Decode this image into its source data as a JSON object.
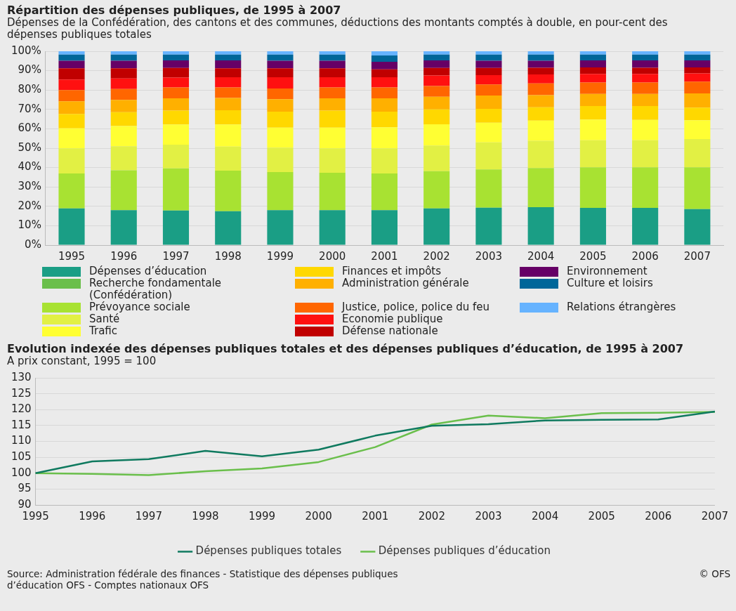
{
  "chart_data": [
    {
      "type": "bar",
      "title": "Répartition des dépenses publiques, de 1995 à 2007",
      "subtitle": "Dépenses de la Confédération, des cantons et des communes, déductions des montants comptés à double, en pour-cent des dépenses publiques totales",
      "categories": [
        "1995",
        "1996",
        "1997",
        "1998",
        "1999",
        "2000",
        "2001",
        "2002",
        "2003",
        "2004",
        "2005",
        "2006",
        "2007"
      ],
      "stacked": true,
      "ylim": [
        0,
        100
      ],
      "yticks": [
        {
          "value": 0,
          "label": "0%"
        },
        {
          "value": 10,
          "label": "10%"
        },
        {
          "value": 20,
          "label": "20%"
        },
        {
          "value": 30,
          "label": "30%"
        },
        {
          "value": 40,
          "label": "40%"
        },
        {
          "value": 50,
          "label": "50%"
        },
        {
          "value": 60,
          "label": "60%"
        },
        {
          "value": 70,
          "label": "70%"
        },
        {
          "value": 80,
          "label": "80%"
        },
        {
          "value": 90,
          "label": "90%"
        },
        {
          "value": 100,
          "label": "100%"
        }
      ],
      "grid": "y",
      "legend": "bottom",
      "series": [
        {
          "name": "Dépenses d’éducation",
          "color": "#1a9e85",
          "values": [
            18.9,
            18.0,
            17.8,
            17.5,
            18.0,
            18.0,
            18.0,
            18.9,
            19.3,
            19.6,
            19.2,
            19.2,
            18.6
          ]
        },
        {
          "name": "Recherche fondamentale (Confédération)",
          "color": "#6abf4b",
          "values": [
            null,
            null,
            null,
            null,
            null,
            null,
            null,
            null,
            null,
            null,
            null,
            null,
            null
          ]
        },
        {
          "name": "Prévoyance sociale",
          "color": "#a8e232",
          "values": [
            18.1,
            20.6,
            21.8,
            20.9,
            19.7,
            19.3,
            19.0,
            19.2,
            19.7,
            20.2,
            20.9,
            20.9,
            21.5
          ]
        },
        {
          "name": "Santé",
          "color": "#e2f044",
          "values": [
            12.9,
            12.4,
            12.2,
            12.4,
            12.6,
            12.6,
            12.9,
            13.3,
            14.0,
            14.0,
            14.0,
            14.0,
            14.6
          ]
        },
        {
          "name": "Trafic",
          "color": "#ffff33",
          "values": [
            10.3,
            10.4,
            10.4,
            11.4,
            10.3,
            10.7,
            10.9,
            10.9,
            10.1,
            10.4,
            10.7,
            10.5,
            9.7
          ]
        },
        {
          "name": "Finances et impôts",
          "color": "#ffd800",
          "values": [
            7.5,
            7.2,
            7.2,
            7.4,
            8.2,
            8.8,
            8.0,
            7.7,
            7.2,
            6.9,
            6.9,
            7.1,
            6.5
          ]
        },
        {
          "name": "Administration générale",
          "color": "#ffb000",
          "values": [
            6.5,
            6.3,
            6.3,
            6.3,
            6.5,
            6.3,
            6.9,
            6.5,
            6.9,
            6.3,
            6.3,
            6.3,
            7.4
          ]
        },
        {
          "name": "Justice, police, police du feu",
          "color": "#ff6600",
          "values": [
            5.8,
            5.6,
            5.6,
            5.4,
            5.5,
            5.6,
            5.6,
            5.6,
            5.7,
            6.0,
            5.9,
            5.9,
            6.0
          ]
        },
        {
          "name": "Economie publique",
          "color": "#ff1010",
          "values": [
            5.4,
            5.5,
            5.1,
            5.3,
            5.8,
            5.3,
            5.3,
            5.4,
            4.8,
            4.6,
            4.4,
            4.4,
            4.3
          ]
        },
        {
          "name": "Défense nationale",
          "color": "#c00000",
          "values": [
            5.8,
            5.2,
            5.0,
            4.6,
            4.6,
            4.6,
            4.1,
            3.9,
            3.7,
            3.5,
            3.4,
            3.2,
            3.1
          ]
        },
        {
          "name": "Environnement",
          "color": "#660066",
          "values": [
            3.9,
            3.9,
            3.9,
            4.1,
            3.9,
            3.9,
            3.9,
            3.9,
            3.7,
            3.6,
            3.6,
            3.8,
            3.6
          ]
        },
        {
          "name": "Culture et loisirs",
          "color": "#006699",
          "values": [
            3.2,
            3.2,
            3.0,
            3.0,
            3.2,
            3.2,
            3.2,
            3.0,
            3.2,
            3.2,
            3.0,
            3.0,
            3.0
          ]
        },
        {
          "name": "Relations étrangères",
          "color": "#66b3ff",
          "values": [
            1.7,
            1.7,
            1.7,
            1.7,
            1.7,
            1.7,
            2.2,
            1.7,
            1.7,
            1.7,
            1.7,
            1.7,
            1.7
          ]
        }
      ]
    },
    {
      "type": "line",
      "title": "Evolution indexée des dépenses publiques totales et des dépenses publiques d’éducation, de 1995 à 2007",
      "subtitle": "A prix constant, 1995 = 100",
      "categories": [
        "1995",
        "1996",
        "1997",
        "1998",
        "1999",
        "2000",
        "2001",
        "2002",
        "2003",
        "2004",
        "2005",
        "2006",
        "2007"
      ],
      "ylim": [
        90,
        130
      ],
      "yticks": [
        90,
        95,
        100,
        105,
        110,
        115,
        120,
        125,
        130
      ],
      "grid": "y",
      "legend": "bottom",
      "series": [
        {
          "name": "Dépenses publiques totales",
          "color": "#0f7a5f",
          "values": [
            100,
            103.7,
            104.4,
            107.0,
            105.3,
            107.4,
            111.8,
            114.9,
            115.4,
            116.6,
            116.8,
            116.9,
            119.4
          ]
        },
        {
          "name": "Dépenses publiques d’éducation",
          "color": "#6abf4b",
          "values": [
            100,
            99.8,
            99.4,
            100.6,
            101.5,
            103.5,
            108.2,
            115.3,
            118.1,
            117.3,
            118.9,
            119.0,
            119.3
          ]
        }
      ],
      "annotations": [
        "Source: Administration fédérale des finances - Statistique des dépenses publiques d’éducation OFS - Comptes nationaux OFS",
        "© OFS"
      ]
    }
  ]
}
